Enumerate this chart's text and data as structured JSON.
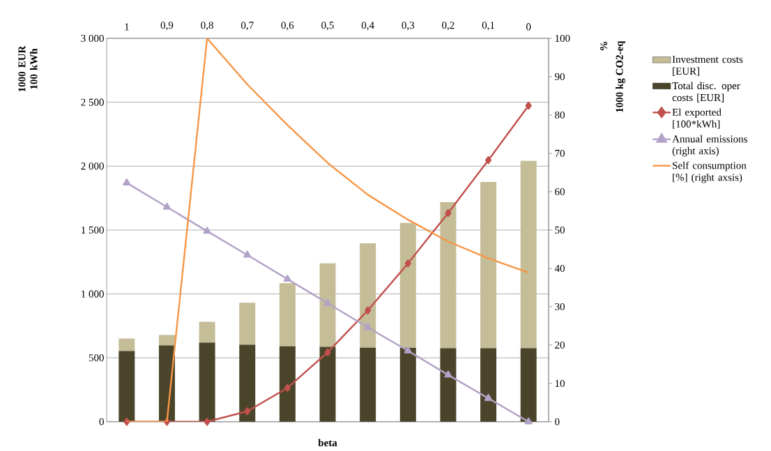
{
  "chart_data": {
    "type": "bar",
    "stacked": true,
    "xlabel": "beta",
    "ylabel": "1000 EUR 100 kWh",
    "y2label": "1000 kg CO2-eq",
    "annotations": [
      "%"
    ],
    "categories": [
      "1",
      "0,9",
      "0,8",
      "0,7",
      "0,6",
      "0,5",
      "0,4",
      "0,3",
      "0,2",
      "0,1",
      "0"
    ],
    "series": [
      {
        "name": "Total disc. oper costs [EUR]",
        "color": "#4a452a",
        "values": [
          554,
          597,
          619,
          603,
          591,
          586,
          580,
          578,
          575,
          575,
          575
        ]
      },
      {
        "name": "Investment costs [EUR]",
        "color": "#c4bd97",
        "values": [
          97,
          82,
          163,
          328,
          493,
          653,
          817,
          978,
          1143,
          1302,
          1466
        ]
      },
      {
        "name": "El exported [100*kWh]",
        "type": "line",
        "color": "#c0504d",
        "marker": "diamond",
        "values": [
          0,
          0,
          0,
          82,
          265,
          543,
          871,
          1239,
          1634,
          2047,
          2474
        ]
      },
      {
        "name": "Annual emissions (right axis)",
        "type": "line",
        "axis": "y2",
        "color": "#b3a2c7",
        "marker": "triangle",
        "values": [
          62.3,
          56.0,
          49.7,
          43.5,
          37.2,
          30.9,
          24.6,
          18.5,
          12.2,
          6.1,
          0
        ]
      },
      {
        "name": "Self consumption [%] (right axsis)",
        "type": "line",
        "axis": "y2",
        "color": "#f79646",
        "marker": "none",
        "values": [
          0,
          0,
          100,
          88.0,
          77.4,
          67.5,
          59.2,
          52.7,
          47.0,
          42.6,
          38.9
        ]
      }
    ],
    "ylim": [
      0,
      3000
    ],
    "yticks": [
      0,
      500,
      {
        "value": 1000,
        "label": "1 000"
      },
      {
        "value": 1500,
        "label": "1 500"
      },
      {
        "value": 2000,
        "label": "2 000"
      },
      {
        "value": 2500,
        "label": "2 500"
      },
      {
        "value": 3000,
        "label": "3 000"
      }
    ],
    "y2lim": [
      0,
      100
    ],
    "y2ticks": [
      0,
      10,
      20,
      30,
      40,
      50,
      60,
      70,
      80,
      90,
      100
    ],
    "grid": "y",
    "legend": "right"
  }
}
